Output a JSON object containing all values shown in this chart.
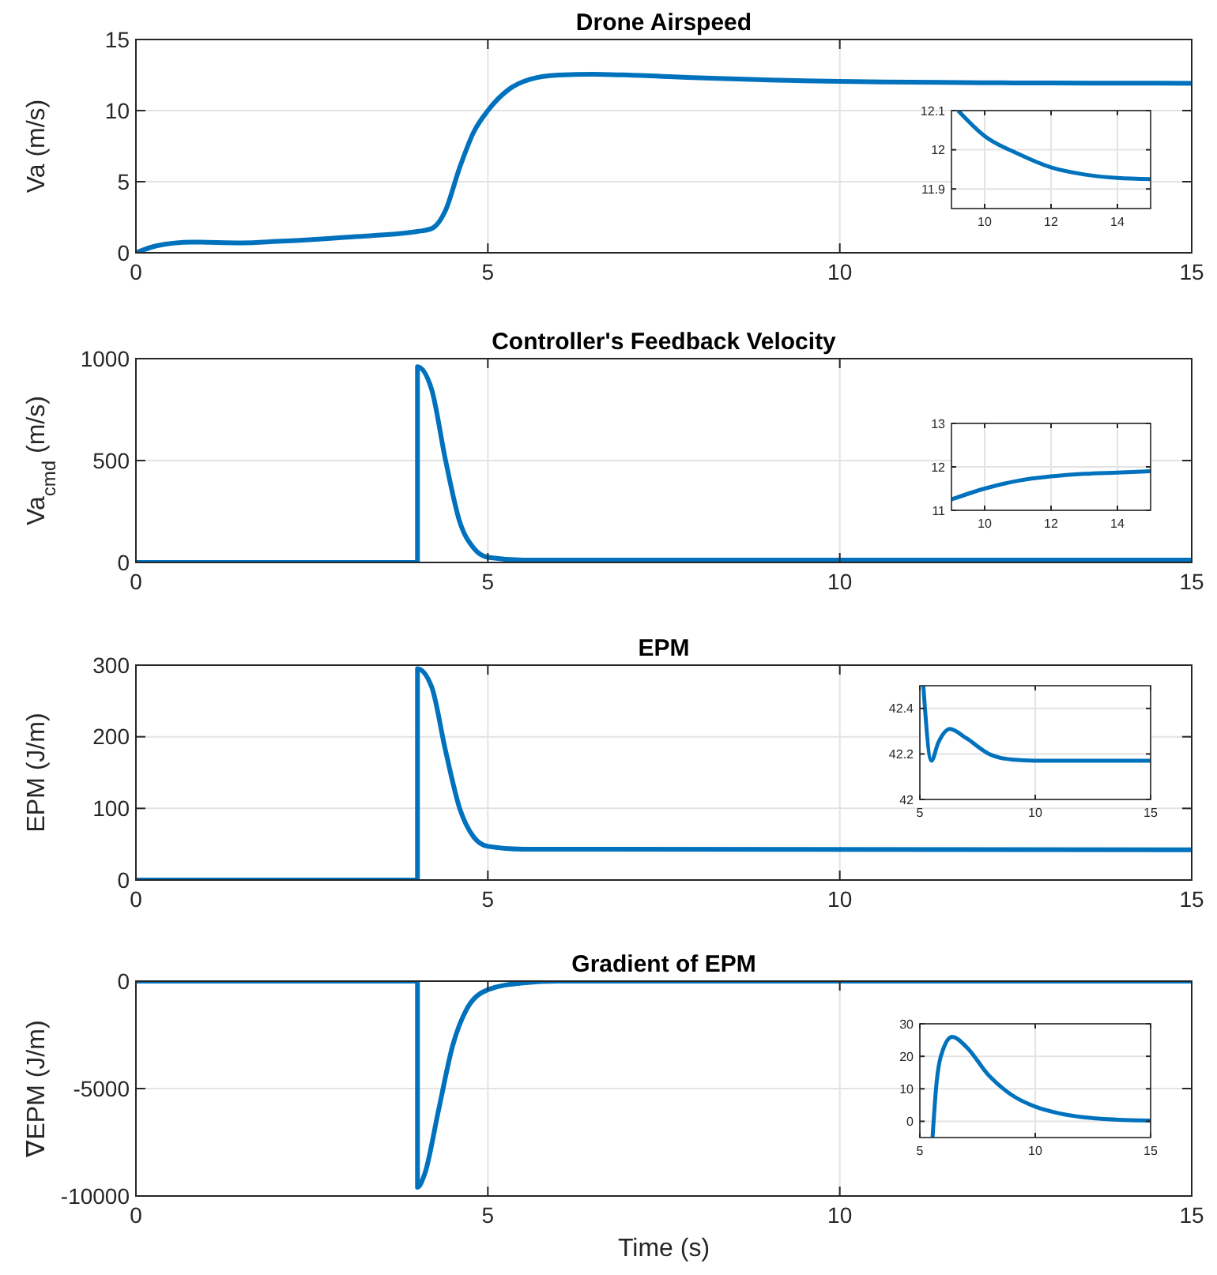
{
  "chart_data": [
    {
      "type": "line",
      "title": "Drone Airspeed",
      "ylabel": "Va (m/s)",
      "xlim": [
        0,
        15
      ],
      "xticks": [
        0,
        5,
        10,
        15
      ],
      "ylim": [
        0,
        15
      ],
      "yticks": [
        0,
        5,
        10,
        15
      ],
      "grid": true,
      "line_style": "solid",
      "series": [
        {
          "color": "#0072bd",
          "x": [
            0,
            0.3,
            0.8,
            1.5,
            2,
            3,
            4,
            4.2,
            4.4,
            4.6,
            4.8,
            5,
            5.3,
            5.6,
            6,
            6.5,
            7,
            8,
            9,
            10,
            11,
            12,
            13,
            14,
            15
          ],
          "values": [
            0,
            0.5,
            0.75,
            0.7,
            0.8,
            1.1,
            1.5,
            1.7,
            3,
            6,
            8.5,
            10,
            11.5,
            12.2,
            12.5,
            12.55,
            12.5,
            12.3,
            12.15,
            12.05,
            12,
            11.96,
            11.94,
            11.93,
            11.92
          ]
        }
      ]
    },
    {
      "type": "line",
      "xlim": [
        9,
        15
      ],
      "xticks": [
        10,
        12,
        14
      ],
      "ylim": [
        11.85,
        12.1
      ],
      "yticks": [
        11.9,
        12,
        12.1
      ],
      "grid": true,
      "line_style": "solid",
      "series": [
        {
          "color": "#0072bd",
          "x": [
            9.2,
            10,
            11,
            12,
            13,
            14,
            15
          ],
          "values": [
            12.1,
            12.035,
            11.99,
            11.955,
            11.937,
            11.928,
            11.925
          ]
        }
      ]
    },
    {
      "type": "line",
      "title": "Controller's Feedback Velocity",
      "ylabel": "Va$_{cmd}$ (m/s)",
      "xlim": [
        0,
        15
      ],
      "xticks": [
        0,
        5,
        10,
        15
      ],
      "ylim": [
        0,
        1000
      ],
      "yticks": [
        0,
        500,
        1000
      ],
      "grid": true,
      "line_style": "solid",
      "series": [
        {
          "color": "#0072bd",
          "x": [
            0,
            4,
            4,
            4.2,
            4.4,
            4.6,
            4.8,
            5,
            5.5,
            15
          ],
          "values": [
            0,
            0,
            960,
            850,
            500,
            200,
            70,
            25,
            12,
            12
          ]
        }
      ]
    },
    {
      "type": "line",
      "xlim": [
        9,
        15
      ],
      "xticks": [
        10,
        12,
        14
      ],
      "ylim": [
        11,
        13
      ],
      "yticks": [
        11,
        12,
        13
      ],
      "grid": true,
      "line_style": "solid",
      "series": [
        {
          "color": "#0072bd",
          "x": [
            9,
            10,
            11,
            12,
            13,
            14,
            15
          ],
          "values": [
            11.25,
            11.5,
            11.68,
            11.78,
            11.84,
            11.87,
            11.9
          ]
        }
      ]
    },
    {
      "type": "line",
      "title": "EPM",
      "ylabel": "EPM (J/m)",
      "xlim": [
        0,
        15
      ],
      "xticks": [
        0,
        5,
        10,
        15
      ],
      "ylim": [
        0,
        300
      ],
      "yticks": [
        0,
        100,
        200,
        300
      ],
      "grid": true,
      "line_style": "solid",
      "series": [
        {
          "color": "#0072bd",
          "x": [
            0,
            4,
            4,
            4.2,
            4.4,
            4.6,
            4.8,
            5,
            5.5,
            15
          ],
          "values": [
            0,
            0,
            295,
            270,
            180,
            100,
            60,
            47,
            43,
            42.2
          ]
        }
      ]
    },
    {
      "type": "line",
      "xlim": [
        5,
        15
      ],
      "xticks": [
        5,
        10,
        15
      ],
      "ylim": [
        42,
        42.5
      ],
      "yticks": [
        42,
        42.2,
        42.4
      ],
      "grid": true,
      "line_style": "solid",
      "series": [
        {
          "color": "#0072bd",
          "x": [
            5.15,
            5.5,
            5.8,
            6.3,
            7,
            8,
            9,
            10,
            15
          ],
          "values": [
            42.5,
            42.17,
            42.25,
            42.31,
            42.27,
            42.2,
            42.175,
            42.17,
            42.17
          ]
        }
      ]
    },
    {
      "type": "line",
      "title": "Gradient of EPM",
      "xlabel": "Time (s)",
      "ylabel": "∇EPM (J/m)",
      "xlim": [
        0,
        15
      ],
      "xticks": [
        0,
        5,
        10,
        15
      ],
      "ylim": [
        -10000,
        0
      ],
      "yticks": [
        -10000,
        -5000,
        0
      ],
      "grid": true,
      "line_style": "solid",
      "series": [
        {
          "color": "#0072bd",
          "x": [
            0,
            4,
            4,
            4.1,
            4.3,
            4.5,
            4.7,
            5,
            5.5,
            6,
            15
          ],
          "values": [
            0,
            0,
            -9600,
            -9000,
            -6000,
            -3000,
            -1300,
            -400,
            -80,
            0,
            0
          ]
        }
      ]
    },
    {
      "type": "line",
      "xlim": [
        5,
        15
      ],
      "xticks": [
        5,
        10,
        15
      ],
      "ylim": [
        -5,
        30
      ],
      "yticks": [
        0,
        10,
        20,
        30
      ],
      "grid": true,
      "line_style": "solid",
      "series": [
        {
          "color": "#0072bd",
          "x": [
            5.55,
            5.7,
            6,
            6.4,
            7,
            8,
            9,
            10,
            11,
            12,
            13,
            15
          ],
          "values": [
            -5,
            10,
            22,
            26,
            23,
            14,
            8,
            4.5,
            2.5,
            1.3,
            0.7,
            0.2
          ]
        }
      ]
    }
  ]
}
